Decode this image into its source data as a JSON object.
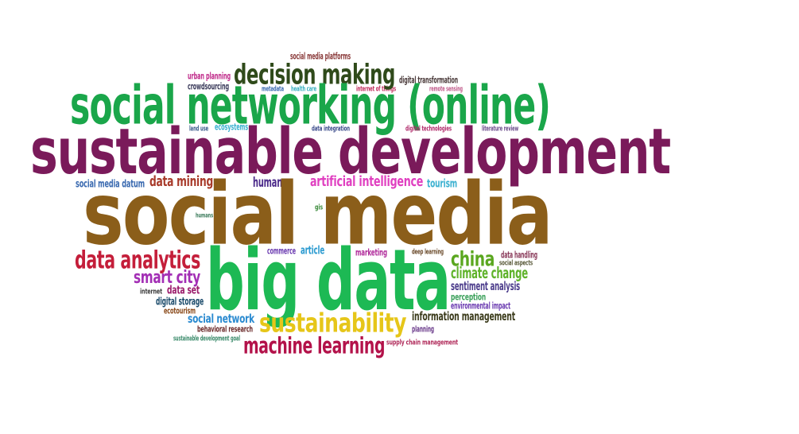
{
  "words": {
    "social_media": {
      "text": "social media",
      "color": "#8b5e1a"
    },
    "sustainable_development": {
      "text": "sustainable development",
      "color": "#7a1a5a"
    },
    "big_data": {
      "text": "big data",
      "color": "#1db954"
    },
    "social_networking_online": {
      "text": "social networking (online)",
      "color": "#1aa64a"
    },
    "decision_making": {
      "text": "decision making",
      "color": "#2f4a1a"
    },
    "sustainability": {
      "text": "sustainability",
      "color": "#e6c619"
    },
    "machine_learning": {
      "text": "machine learning",
      "color": "#b3124a"
    },
    "data_analytics": {
      "text": "data analytics",
      "color": "#c41e3a"
    },
    "smart_city": {
      "text": "smart city",
      "color": "#a32fb5"
    },
    "china": {
      "text": "china",
      "color": "#5aa71f"
    },
    "climate_change": {
      "text": "climate change",
      "color": "#5fb32a"
    },
    "artificial_intelligence": {
      "text": "artificial intelligence",
      "color": "#e040c0"
    },
    "data_mining": {
      "text": "data mining",
      "color": "#a83a2a"
    },
    "human": {
      "text": "human",
      "color": "#4b2a8a"
    },
    "tourism": {
      "text": "tourism",
      "color": "#3ab0d0"
    },
    "social_media_datum": {
      "text": "social media datum",
      "color": "#3a6ab0"
    },
    "social_network": {
      "text": "social network",
      "color": "#2a8ad0"
    },
    "information_management": {
      "text": "information management",
      "color": "#3a3a1a"
    },
    "sentiment_analysis": {
      "text": "sentiment analysis",
      "color": "#4a3a8a"
    },
    "data_set": {
      "text": "data set",
      "color": "#9a1a6a"
    },
    "digital_storage": {
      "text": "digital storage",
      "color": "#1a4a6a"
    },
    "perception": {
      "text": "perception",
      "color": "#3aa05a"
    },
    "environmental_impact": {
      "text": "environmental impact",
      "color": "#6a3ab0"
    },
    "ecotourism": {
      "text": "ecotourism",
      "color": "#8a4a1a"
    },
    "behavioral_research": {
      "text": "behavioral research",
      "color": "#6a2a2a"
    },
    "internet": {
      "text": "internet",
      "color": "#3a3a3a"
    },
    "planning": {
      "text": "planning",
      "color": "#6a3a8a"
    },
    "supply_chain_management": {
      "text": "supply chain management",
      "color": "#b02a5a"
    },
    "sustainable_development_goal": {
      "text": "sustainable development goal",
      "color": "#3a8a6a"
    },
    "commerce": {
      "text": "commerce",
      "color": "#6a3ab0"
    },
    "article": {
      "text": "article",
      "color": "#2a9ad0"
    },
    "marketing": {
      "text": "marketing",
      "color": "#b02a9a"
    },
    "deep_learning": {
      "text": "deep learning",
      "color": "#6a4a2a"
    },
    "data_handling": {
      "text": "data handling",
      "color": "#8a3a5a"
    },
    "social_aspects": {
      "text": "social aspects",
      "color": "#5a5a3a"
    },
    "gis": {
      "text": "gis",
      "color": "#3a8a3a"
    },
    "humans": {
      "text": "humans",
      "color": "#3a7a5a"
    },
    "land_use": {
      "text": "land use",
      "color": "#3a5a8a"
    },
    "ecosystems": {
      "text": "ecosystems",
      "color": "#3ab0d0"
    },
    "data_integration": {
      "text": "data integration",
      "color": "#3a4a8a"
    },
    "digital_technologies": {
      "text": "digital technologies",
      "color": "#b02a6a"
    },
    "literature_review": {
      "text": "literature review",
      "color": "#6a4a8a"
    },
    "social_media_platforms": {
      "text": "social media platforms",
      "color": "#8a3a3a"
    },
    "urban_planning": {
      "text": "urban planning",
      "color": "#c02a8a"
    },
    "crowdsourcing": {
      "text": "crowdsourcing",
      "color": "#3a3a5a"
    },
    "metadata": {
      "text": "metadata",
      "color": "#3a6ab0"
    },
    "health_care": {
      "text": "health care",
      "color": "#3ab0c0"
    },
    "internet_of_things": {
      "text": "internet of things",
      "color": "#c02a5a"
    },
    "remote_sensing": {
      "text": "remote sensing",
      "color": "#c05a8a"
    },
    "digital_transformation": {
      "text": "digital transformation",
      "color": "#4a3a3a"
    }
  }
}
